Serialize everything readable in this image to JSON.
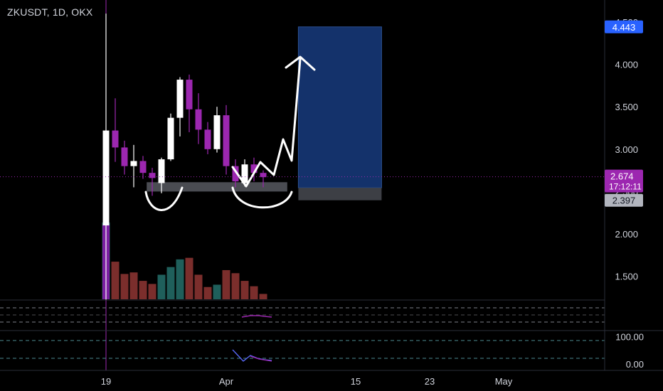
{
  "header": {
    "title": "ZKUSDT, 1D, OKX"
  },
  "colors": {
    "background": "#000000",
    "bull": "#ffffff",
    "bear": "#9c27b0",
    "volume_up": "#1f5f5b",
    "volume_down": "#7b2e2c",
    "target_zone": "#14326b",
    "stop_zone": "#3d3f45",
    "support_zone": "#4a4c52",
    "price_line": "#9c27b0",
    "target_label": "#2962ff",
    "current_label": "#9c27b0",
    "stop_label": "#b2b5be",
    "axis_text": "#d1d4dc",
    "drawing": "#ffffff",
    "indicator_line": "#5b6bff"
  },
  "chart_data": {
    "type": "candlestick",
    "symbol": "ZKUSDT",
    "interval": "1D",
    "exchange": "OKX",
    "ylim": [
      1.22,
      4.76
    ],
    "y_ticks": [
      "1.500",
      "2.000",
      "2.500",
      "3.000",
      "3.500",
      "4.000",
      "4.500"
    ],
    "x_labels": [
      {
        "label": "19",
        "day": 0
      },
      {
        "label": "Apr",
        "day": 13
      },
      {
        "label": "15",
        "day": 27
      },
      {
        "label": "23",
        "day": 35
      },
      {
        "label": "May",
        "day": 43
      }
    ],
    "candles": [
      {
        "day": 0,
        "o": 2.1,
        "h": 4.6,
        "l": 1.22,
        "c": 3.22
      },
      {
        "day": 1,
        "o": 3.22,
        "h": 3.6,
        "l": 2.85,
        "c": 3.02
      },
      {
        "day": 2,
        "o": 3.02,
        "h": 3.1,
        "l": 2.7,
        "c": 2.8
      },
      {
        "day": 3,
        "o": 2.8,
        "h": 3.05,
        "l": 2.55,
        "c": 2.86
      },
      {
        "day": 4,
        "o": 2.86,
        "h": 2.92,
        "l": 2.65,
        "c": 2.72
      },
      {
        "day": 5,
        "o": 2.72,
        "h": 2.78,
        "l": 2.45,
        "c": 2.66
      },
      {
        "day": 6,
        "o": 2.6,
        "h": 2.9,
        "l": 2.48,
        "c": 2.88
      },
      {
        "day": 7,
        "o": 2.88,
        "h": 3.42,
        "l": 2.86,
        "c": 3.37
      },
      {
        "day": 8,
        "o": 3.37,
        "h": 3.85,
        "l": 3.15,
        "c": 3.82
      },
      {
        "day": 9,
        "o": 3.82,
        "h": 3.88,
        "l": 3.2,
        "c": 3.47
      },
      {
        "day": 10,
        "o": 3.47,
        "h": 3.66,
        "l": 3.06,
        "c": 3.23
      },
      {
        "day": 11,
        "o": 3.23,
        "h": 3.32,
        "l": 2.94,
        "c": 3.0
      },
      {
        "day": 12,
        "o": 3.0,
        "h": 3.5,
        "l": 2.96,
        "c": 3.4
      },
      {
        "day": 13,
        "o": 3.4,
        "h": 3.52,
        "l": 2.7,
        "c": 2.8
      },
      {
        "day": 14,
        "o": 2.8,
        "h": 2.88,
        "l": 2.55,
        "c": 2.62
      },
      {
        "day": 15,
        "o": 2.6,
        "h": 2.88,
        "l": 2.56,
        "c": 2.82
      },
      {
        "day": 16,
        "o": 2.82,
        "h": 2.9,
        "l": 2.62,
        "c": 2.72
      },
      {
        "day": 17,
        "o": 2.72,
        "h": 2.75,
        "l": 2.55,
        "c": 2.67
      }
    ],
    "volume": [
      {
        "day": 0,
        "v": 1.0,
        "dir": "up"
      },
      {
        "day": 1,
        "v": 0.49,
        "dir": "down"
      },
      {
        "day": 2,
        "v": 0.33,
        "dir": "down"
      },
      {
        "day": 3,
        "v": 0.35,
        "dir": "down"
      },
      {
        "day": 4,
        "v": 0.24,
        "dir": "down"
      },
      {
        "day": 5,
        "v": 0.2,
        "dir": "down"
      },
      {
        "day": 6,
        "v": 0.32,
        "dir": "up"
      },
      {
        "day": 7,
        "v": 0.42,
        "dir": "up"
      },
      {
        "day": 8,
        "v": 0.52,
        "dir": "up"
      },
      {
        "day": 9,
        "v": 0.54,
        "dir": "down"
      },
      {
        "day": 10,
        "v": 0.32,
        "dir": "down"
      },
      {
        "day": 11,
        "v": 0.16,
        "dir": "down"
      },
      {
        "day": 12,
        "v": 0.19,
        "dir": "up"
      },
      {
        "day": 13,
        "v": 0.38,
        "dir": "down"
      },
      {
        "day": 14,
        "v": 0.34,
        "dir": "down"
      },
      {
        "day": 15,
        "v": 0.24,
        "dir": "down"
      },
      {
        "day": 16,
        "v": 0.17,
        "dir": "down"
      },
      {
        "day": 17,
        "v": 0.07,
        "dir": "down"
      }
    ],
    "current_price": {
      "value": 2.674,
      "label": "2.674",
      "countdown": "17:12:11"
    },
    "position": {
      "entry": 2.544,
      "target": {
        "value": 4.443,
        "label": "4.443"
      },
      "stop": {
        "value": 2.397,
        "label": "2.397"
      },
      "start_day": 20.8,
      "end_day": 29.8
    },
    "support_zone": {
      "top": 2.61,
      "bottom": 2.5,
      "start_day": 4.4,
      "end_day": 19.6
    },
    "indicator_2": {
      "y_ticks": [
        "100.00",
        "0.00"
      ],
      "ylim": [
        -10,
        120
      ]
    }
  }
}
